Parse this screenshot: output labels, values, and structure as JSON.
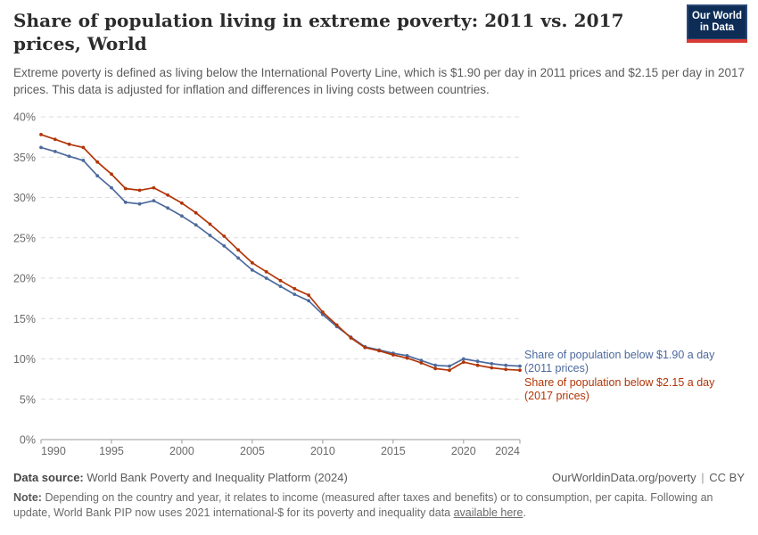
{
  "header": {
    "title": "Share of population living in extreme poverty: 2011 vs. 2017 prices, World",
    "subtitle": "Extreme poverty is defined as living below the International Poverty Line, which is $1.90 per day in 2011 prices and $2.15 per day in 2017 prices. This data is adjusted for inflation and differences in living costs between countries.",
    "logo": {
      "line1": "Our World",
      "line2": "in Data"
    }
  },
  "chart_data": {
    "type": "line",
    "x": [
      1990,
      1991,
      1992,
      1993,
      1994,
      1995,
      1996,
      1997,
      1998,
      1999,
      2000,
      2001,
      2002,
      2003,
      2004,
      2005,
      2006,
      2007,
      2008,
      2009,
      2010,
      2011,
      2012,
      2013,
      2014,
      2015,
      2016,
      2017,
      2018,
      2019,
      2020,
      2021,
      2022,
      2023,
      2024
    ],
    "series": [
      {
        "name": "Share of population below $1.90 a day (2011 prices)",
        "label_line1": "Share of population below $1.90 a day",
        "label_line2": "(2011 prices)",
        "color": "#4C6A9C",
        "values": [
          36.2,
          35.7,
          35.1,
          34.6,
          32.7,
          31.2,
          29.4,
          29.2,
          29.6,
          28.7,
          27.7,
          26.6,
          25.3,
          24.0,
          22.5,
          21.0,
          20.0,
          19.0,
          18.0,
          17.2,
          15.5,
          14.0,
          12.7,
          11.5,
          11.1,
          10.7,
          10.4,
          9.8,
          9.2,
          9.1,
          10.0,
          9.7,
          9.4,
          9.2,
          9.1
        ]
      },
      {
        "name": "Share of population below $2.15 a day (2017 prices)",
        "label_line1": "Share of population below $2.15 a day",
        "label_line2": "(2017 prices)",
        "color": "#B13507",
        "values": [
          37.8,
          37.2,
          36.6,
          36.2,
          34.4,
          32.9,
          31.1,
          30.9,
          31.2,
          30.3,
          29.3,
          28.1,
          26.7,
          25.2,
          23.5,
          21.9,
          20.8,
          19.7,
          18.7,
          17.9,
          15.8,
          14.2,
          12.6,
          11.4,
          11.0,
          10.5,
          10.1,
          9.5,
          8.8,
          8.6,
          9.6,
          9.2,
          8.9,
          8.7,
          8.6
        ]
      }
    ],
    "title": "Share of population living in extreme poverty: 2011 vs. 2017 prices, World",
    "xlabel": "",
    "ylabel": "",
    "ylim": [
      0,
      40
    ],
    "yticks": [
      0,
      5,
      10,
      15,
      20,
      25,
      30,
      35,
      40
    ],
    "ytick_suffix": "%",
    "xticks": [
      1990,
      1995,
      2000,
      2005,
      2010,
      2015,
      2020,
      2024
    ],
    "grid": "dashed-horizontal",
    "legend_position": "right-end-labels"
  },
  "footer": {
    "data_source_label": "Data source:",
    "data_source_value": "World Bank Poverty and Inequality Platform (2024)",
    "url": "OurWorldinData.org/poverty",
    "separator": "|",
    "license": "CC BY",
    "note_label": "Note:",
    "note_text": "Depending on the country and year, it relates to income (measured after taxes and benefits) or to consumption, per capita. Following an update, World Bank PIP now uses 2021 international-$ for its poverty and inequality data ",
    "note_link": "available here",
    "note_suffix": "."
  }
}
